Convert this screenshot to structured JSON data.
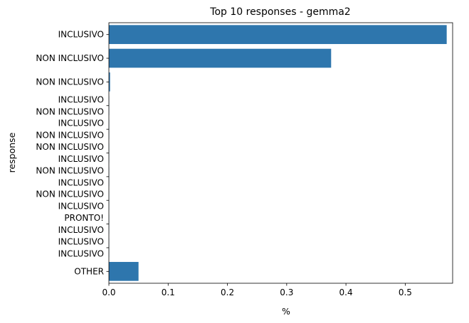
{
  "chart_data": {
    "type": "bar",
    "orientation": "horizontal",
    "title": "Top 10 responses - gemma2",
    "xlabel": "%",
    "ylabel": "response",
    "xlim": [
      0,
      0.58
    ],
    "xticks": [
      "0.0",
      "0.1",
      "0.2",
      "0.3",
      "0.4",
      "0.5"
    ],
    "xtick_values": [
      0.0,
      0.1,
      0.2,
      0.3,
      0.4,
      0.5
    ],
    "grid": false,
    "bar_color": "#2e76ad",
    "categories": [
      [
        "INCLUSIVO"
      ],
      [
        "NON INCLUSIVO"
      ],
      [
        "NON INCLUSIVO"
      ],
      [
        "INCLUSIVO",
        "NON INCLUSIVO"
      ],
      [
        "INCLUSIVO",
        "NON INCLUSIVO"
      ],
      [
        "NON INCLUSIVO",
        "INCLUSIVO"
      ],
      [
        "NON INCLUSIVO",
        "INCLUSIVO"
      ],
      [
        "NON INCLUSIVO",
        "INCLUSIVO"
      ],
      [
        "PRONTO!",
        "INCLUSIVO"
      ],
      [
        "INCLUSIVO",
        "INCLUSIVO"
      ],
      [
        "OTHER"
      ]
    ],
    "values": [
      0.57,
      0.375,
      0.002,
      0.0005,
      0.0005,
      0.0004,
      0.0004,
      0.0003,
      0.0003,
      0.0003,
      0.05
    ]
  }
}
